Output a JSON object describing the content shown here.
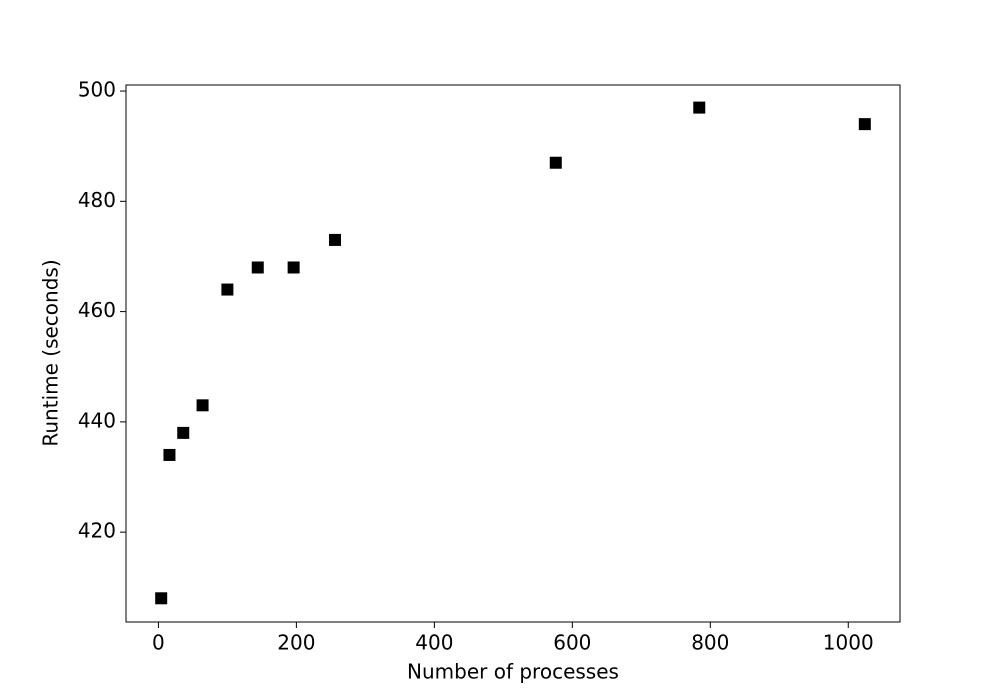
{
  "chart_data": {
    "type": "scatter",
    "xlabel": "Number of processes",
    "ylabel": "Runtime (seconds)",
    "x": [
      4,
      16,
      36,
      64,
      100,
      144,
      196,
      256,
      576,
      784,
      1024
    ],
    "series": [
      {
        "color": "#000000",
        "values": [
          408,
          434,
          438,
          443,
          464,
          468,
          468,
          473,
          487,
          497,
          494
        ]
      }
    ],
    "xlim": [
      -47,
      1075
    ],
    "ylim": [
      403.7,
      501.1
    ],
    "xticks": [
      0,
      200,
      400,
      600,
      800,
      1000
    ],
    "yticks": [
      420,
      440,
      460,
      480,
      500
    ],
    "grid": false
  }
}
